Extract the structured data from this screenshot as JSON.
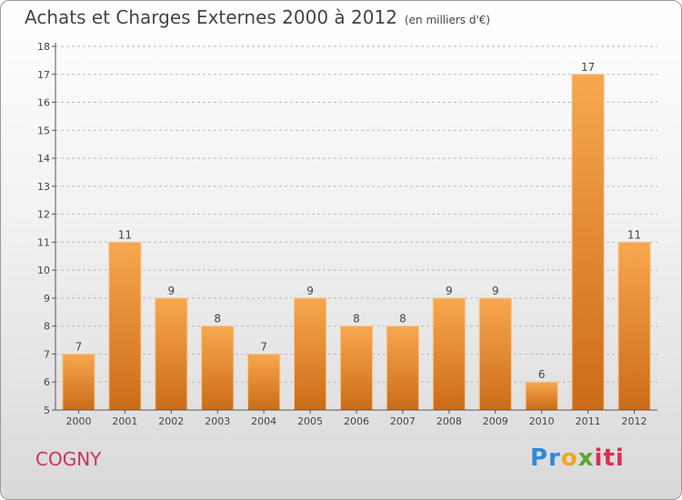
{
  "header": {
    "title": "Achats et Charges Externes 2000 à 2012",
    "unit": "(en milliers d'€)"
  },
  "footer": {
    "city": "COGNY",
    "brand_parts": [
      "Pr",
      "o",
      "x",
      "iti"
    ]
  },
  "colors": {
    "bar_light": "#f7a84e",
    "bar_dark": "#cc6c18",
    "axis": "#555555",
    "grid": "#b8b8b8",
    "city": "#c8355a"
  },
  "chart_data": {
    "type": "bar",
    "title": "Achats et Charges Externes 2000 à 2012",
    "subtitle": "(en milliers d'€)",
    "categories": [
      "2000",
      "2001",
      "2002",
      "2003",
      "2004",
      "2005",
      "2006",
      "2007",
      "2008",
      "2009",
      "2010",
      "2011",
      "2012"
    ],
    "values": [
      7,
      11,
      9,
      8,
      7,
      9,
      8,
      8,
      9,
      9,
      6,
      17,
      11
    ],
    "ylim": [
      5,
      18
    ],
    "yticks": [
      5,
      6,
      7,
      8,
      9,
      10,
      11,
      12,
      13,
      14,
      15,
      16,
      17,
      18
    ],
    "grid": true,
    "xlabel": "",
    "ylabel": ""
  }
}
